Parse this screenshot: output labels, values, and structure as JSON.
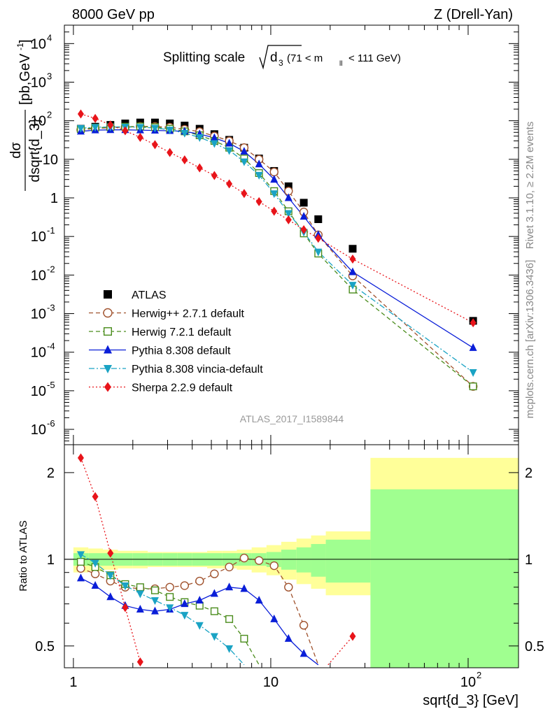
{
  "header": {
    "energy_label": "8000 GeV pp",
    "process_label": "Z (Drell-Yan)"
  },
  "side_labels": {
    "rivet": "Rivet 3.1.10, ≥ 2.2M events",
    "mcplots": "mcplots.cern.ch [arXiv:1306.3436]"
  },
  "colors": {
    "atlas": "#000000",
    "herwigpp": "#a0522d",
    "herwig7": "#4a8c1c",
    "pythia": "#0a1ed8",
    "vincia": "#1aa3c4",
    "sherpa": "#e8141a",
    "band_inner": "#a0ff90",
    "band_outer": "#ffff99"
  },
  "chart_data": [
    {
      "type": "line",
      "panel": "main",
      "title_main": "Splitting scale",
      "title_sub": "d",
      "title_sub_index": "3",
      "title_range": "(71 < m",
      "title_range_sub": "ll",
      "title_range_end": "< 111 GeV)",
      "ylabel_num": "dσ",
      "ylabel_den": "dsqrt{d_3}",
      "ylabel_unit": "[pb,GeV",
      "ylabel_unit_exp": "-1",
      "ylabel_unit_end": "]",
      "xscale": "log",
      "yscale": "log",
      "xlim": [
        0.9,
        180
      ],
      "ylim": [
        4e-07,
        30000.0
      ],
      "ytick_labels": [
        {
          "base": "10",
          "exp": "-6",
          "value": 1e-06
        },
        {
          "base": "10",
          "exp": "-5",
          "value": 1e-05
        },
        {
          "base": "10",
          "exp": "-4",
          "value": 0.0001
        },
        {
          "base": "10",
          "exp": "-3",
          "value": 0.001
        },
        {
          "base": "10",
          "exp": "-2",
          "value": 0.01
        },
        {
          "base": "10",
          "exp": "-1",
          "value": 0.1
        },
        {
          "base": "1",
          "exp": "",
          "value": 1
        },
        {
          "base": "10",
          "exp": "",
          "value": 10
        },
        {
          "base": "10",
          "exp": "2",
          "value": 100
        },
        {
          "base": "10",
          "exp": "3",
          "value": 1000
        },
        {
          "base": "10",
          "exp": "4",
          "value": 10000
        }
      ],
      "watermark": "ATLAS_2017_I1589844",
      "legend_position": "lower-left",
      "series": [
        {
          "name": "ATLAS",
          "key": "atlas",
          "marker": "square",
          "line": "none",
          "x": [
            1.09,
            1.29,
            1.54,
            1.83,
            2.18,
            2.59,
            3.08,
            3.66,
            4.36,
            5.18,
            6.16,
            7.33,
            8.72,
            10.4,
            12.3,
            14.7,
            17.4,
            26.0,
            106.0
          ],
          "y": [
            62,
            70,
            78,
            85,
            90,
            90,
            85,
            75,
            62,
            45,
            32,
            20,
            10.5,
            5.0,
            2.0,
            0.75,
            0.28,
            0.048,
            0.00065
          ]
        },
        {
          "name": "Herwig++ 2.7.1 default",
          "key": "herwigpp",
          "marker": "circle-open",
          "line": "dashed",
          "x": [
            1.09,
            1.29,
            1.54,
            1.83,
            2.18,
            2.59,
            3.08,
            3.66,
            4.36,
            5.18,
            6.16,
            7.33,
            8.72,
            10.4,
            12.3,
            14.7,
            17.4,
            26.0,
            106.0
          ],
          "y": [
            58,
            63,
            66,
            68,
            71,
            71,
            68,
            60,
            52,
            40,
            30,
            20,
            10,
            4.7,
            1.5,
            0.43,
            0.11,
            0.0095,
            1.3e-05
          ]
        },
        {
          "name": "Herwig 7.2.1 default",
          "key": "herwig7",
          "marker": "square-open",
          "line": "dashed",
          "x": [
            1.09,
            1.29,
            1.54,
            1.83,
            2.18,
            2.59,
            3.08,
            3.66,
            4.36,
            5.18,
            6.16,
            7.33,
            8.72,
            10.4,
            12.3,
            14.7,
            17.4,
            26.0,
            106.0
          ],
          "y": [
            61,
            66,
            68,
            70,
            71,
            68,
            62,
            53,
            42,
            30,
            20,
            10.5,
            4.4,
            1.5,
            0.45,
            0.12,
            0.036,
            0.0042,
            1.3e-05
          ]
        },
        {
          "name": "Pythia 8.308 default",
          "key": "pythia",
          "marker": "triangle-up",
          "line": "solid",
          "x": [
            1.09,
            1.29,
            1.54,
            1.83,
            2.18,
            2.59,
            3.08,
            3.66,
            4.36,
            5.18,
            6.16,
            7.33,
            8.72,
            10.4,
            12.3,
            14.7,
            17.4,
            26.0,
            106.0
          ],
          "y": [
            53,
            57,
            58,
            58,
            57,
            56,
            55,
            53,
            45,
            36,
            26,
            16,
            7.5,
            3.0,
            1.0,
            0.33,
            0.11,
            0.012,
            0.00013
          ]
        },
        {
          "name": "Pythia 8.308 vincia-default",
          "key": "vincia",
          "marker": "triangle-down",
          "line": "dashdot",
          "x": [
            1.09,
            1.29,
            1.54,
            1.83,
            2.18,
            2.59,
            3.08,
            3.66,
            4.36,
            5.18,
            6.16,
            7.33,
            8.72,
            10.4,
            12.3,
            14.7,
            17.4,
            26.0,
            106.0
          ],
          "y": [
            64,
            68,
            69,
            69,
            68,
            65,
            58,
            48,
            37,
            26,
            17,
            8.7,
            3.9,
            1.3,
            0.4,
            0.13,
            0.04,
            0.0055,
            3e-05
          ]
        },
        {
          "name": "Sherpa 2.2.9 default",
          "key": "sherpa",
          "marker": "diamond",
          "line": "dotted",
          "x": [
            1.09,
            1.29,
            1.54,
            1.83,
            2.18,
            2.59,
            3.08,
            3.66,
            4.36,
            5.18,
            6.16,
            7.33,
            8.72,
            10.4,
            12.3,
            14.7,
            17.4,
            26.0,
            106.0
          ],
          "y": [
            150,
            115,
            78,
            55,
            37,
            24,
            15,
            9.7,
            6.0,
            3.8,
            2.3,
            1.3,
            0.8,
            0.45,
            0.27,
            0.15,
            0.09,
            0.026,
            0.00058
          ]
        }
      ]
    },
    {
      "type": "line",
      "panel": "ratio",
      "ylabel": "Ratio to ATLAS",
      "xlabel": "sqrt{d_3} [GeV]",
      "xscale": "log",
      "yscale": "log",
      "xlim": [
        0.9,
        180
      ],
      "ylim": [
        0.42,
        2.5
      ],
      "ytick_labels": [
        {
          "label": "0.5",
          "value": 0.5
        },
        {
          "label": "1",
          "value": 1
        },
        {
          "label": "2",
          "value": 2
        }
      ],
      "xtick_labels": [
        {
          "base": "1",
          "exp": "",
          "value": 1
        },
        {
          "base": "10",
          "exp": "",
          "value": 10
        },
        {
          "base": "10",
          "exp": "2",
          "value": 100
        }
      ],
      "uncertainty_bins": [
        1.0,
        1.19,
        1.41,
        1.68,
        2.0,
        2.38,
        2.83,
        3.36,
        4.0,
        4.76,
        5.66,
        6.73,
        8.0,
        9.51,
        11.3,
        13.5,
        16.0,
        19.0,
        32.0,
        180.0
      ],
      "band_inner_halfwidth": [
        0.05,
        0.05,
        0.05,
        0.05,
        0.05,
        0.05,
        0.05,
        0.05,
        0.05,
        0.05,
        0.05,
        0.05,
        0.05,
        0.06,
        0.08,
        0.1,
        0.13,
        0.17,
        0.75
      ],
      "band_outer_halfwidth": [
        0.1,
        0.09,
        0.08,
        0.07,
        0.07,
        0.06,
        0.06,
        0.06,
        0.06,
        0.07,
        0.07,
        0.08,
        0.1,
        0.12,
        0.15,
        0.18,
        0.21,
        0.25,
        1.25
      ],
      "series": [
        {
          "name": "Herwig++ 2.7.1 default",
          "key": "herwigpp",
          "marker": "circle-open",
          "line": "dashed",
          "x": [
            1.09,
            1.29,
            1.54,
            1.83,
            2.18,
            2.59,
            3.08,
            3.66,
            4.36,
            5.18,
            6.16,
            7.33,
            8.72,
            10.4,
            12.3,
            14.7,
            17.4
          ],
          "y": [
            0.93,
            0.89,
            0.84,
            0.8,
            0.79,
            0.79,
            0.8,
            0.81,
            0.84,
            0.89,
            0.94,
            1.01,
            0.99,
            0.95,
            0.8,
            0.59,
            0.43
          ]
        },
        {
          "name": "Herwig 7.2.1 default",
          "key": "herwig7",
          "marker": "square-open",
          "line": "dashed",
          "x": [
            1.09,
            1.29,
            1.54,
            1.83,
            2.18,
            2.59,
            3.08,
            3.66,
            4.36,
            5.18,
            6.16,
            7.33,
            8.72
          ],
          "y": [
            0.98,
            0.94,
            0.88,
            0.82,
            0.8,
            0.78,
            0.74,
            0.71,
            0.69,
            0.66,
            0.62,
            0.53,
            0.43
          ]
        },
        {
          "name": "Pythia 8.308 default",
          "key": "pythia",
          "marker": "triangle-up",
          "line": "solid",
          "x": [
            1.09,
            1.29,
            1.54,
            1.83,
            2.18,
            2.59,
            3.08,
            3.66,
            4.36,
            5.18,
            6.16,
            7.33,
            8.72,
            10.4,
            12.3,
            14.7,
            17.4
          ],
          "y": [
            0.86,
            0.81,
            0.74,
            0.69,
            0.67,
            0.66,
            0.67,
            0.7,
            0.72,
            0.76,
            0.8,
            0.79,
            0.72,
            0.62,
            0.53,
            0.47,
            0.43
          ]
        },
        {
          "name": "Pythia 8.308 vincia-default",
          "key": "vincia",
          "marker": "triangle-down",
          "line": "dashdot",
          "x": [
            1.09,
            1.29,
            1.54,
            1.83,
            2.18,
            2.59,
            3.08,
            3.66,
            4.36,
            5.18,
            6.16,
            7.33
          ],
          "y": [
            1.04,
            0.97,
            0.88,
            0.81,
            0.76,
            0.72,
            0.68,
            0.64,
            0.59,
            0.54,
            0.49,
            0.43
          ]
        },
        {
          "name": "Sherpa 2.2.9 default",
          "key": "sherpa",
          "marker": "diamond",
          "line": "dotted",
          "x": [
            1.09,
            1.29,
            1.54,
            1.83,
            2.18
          ],
          "y": [
            2.25,
            1.65,
            1.05,
            0.68,
            0.44
          ],
          "x2": [
            19.5,
            26.0
          ],
          "y2": [
            0.43,
            0.54
          ]
        }
      ]
    }
  ]
}
